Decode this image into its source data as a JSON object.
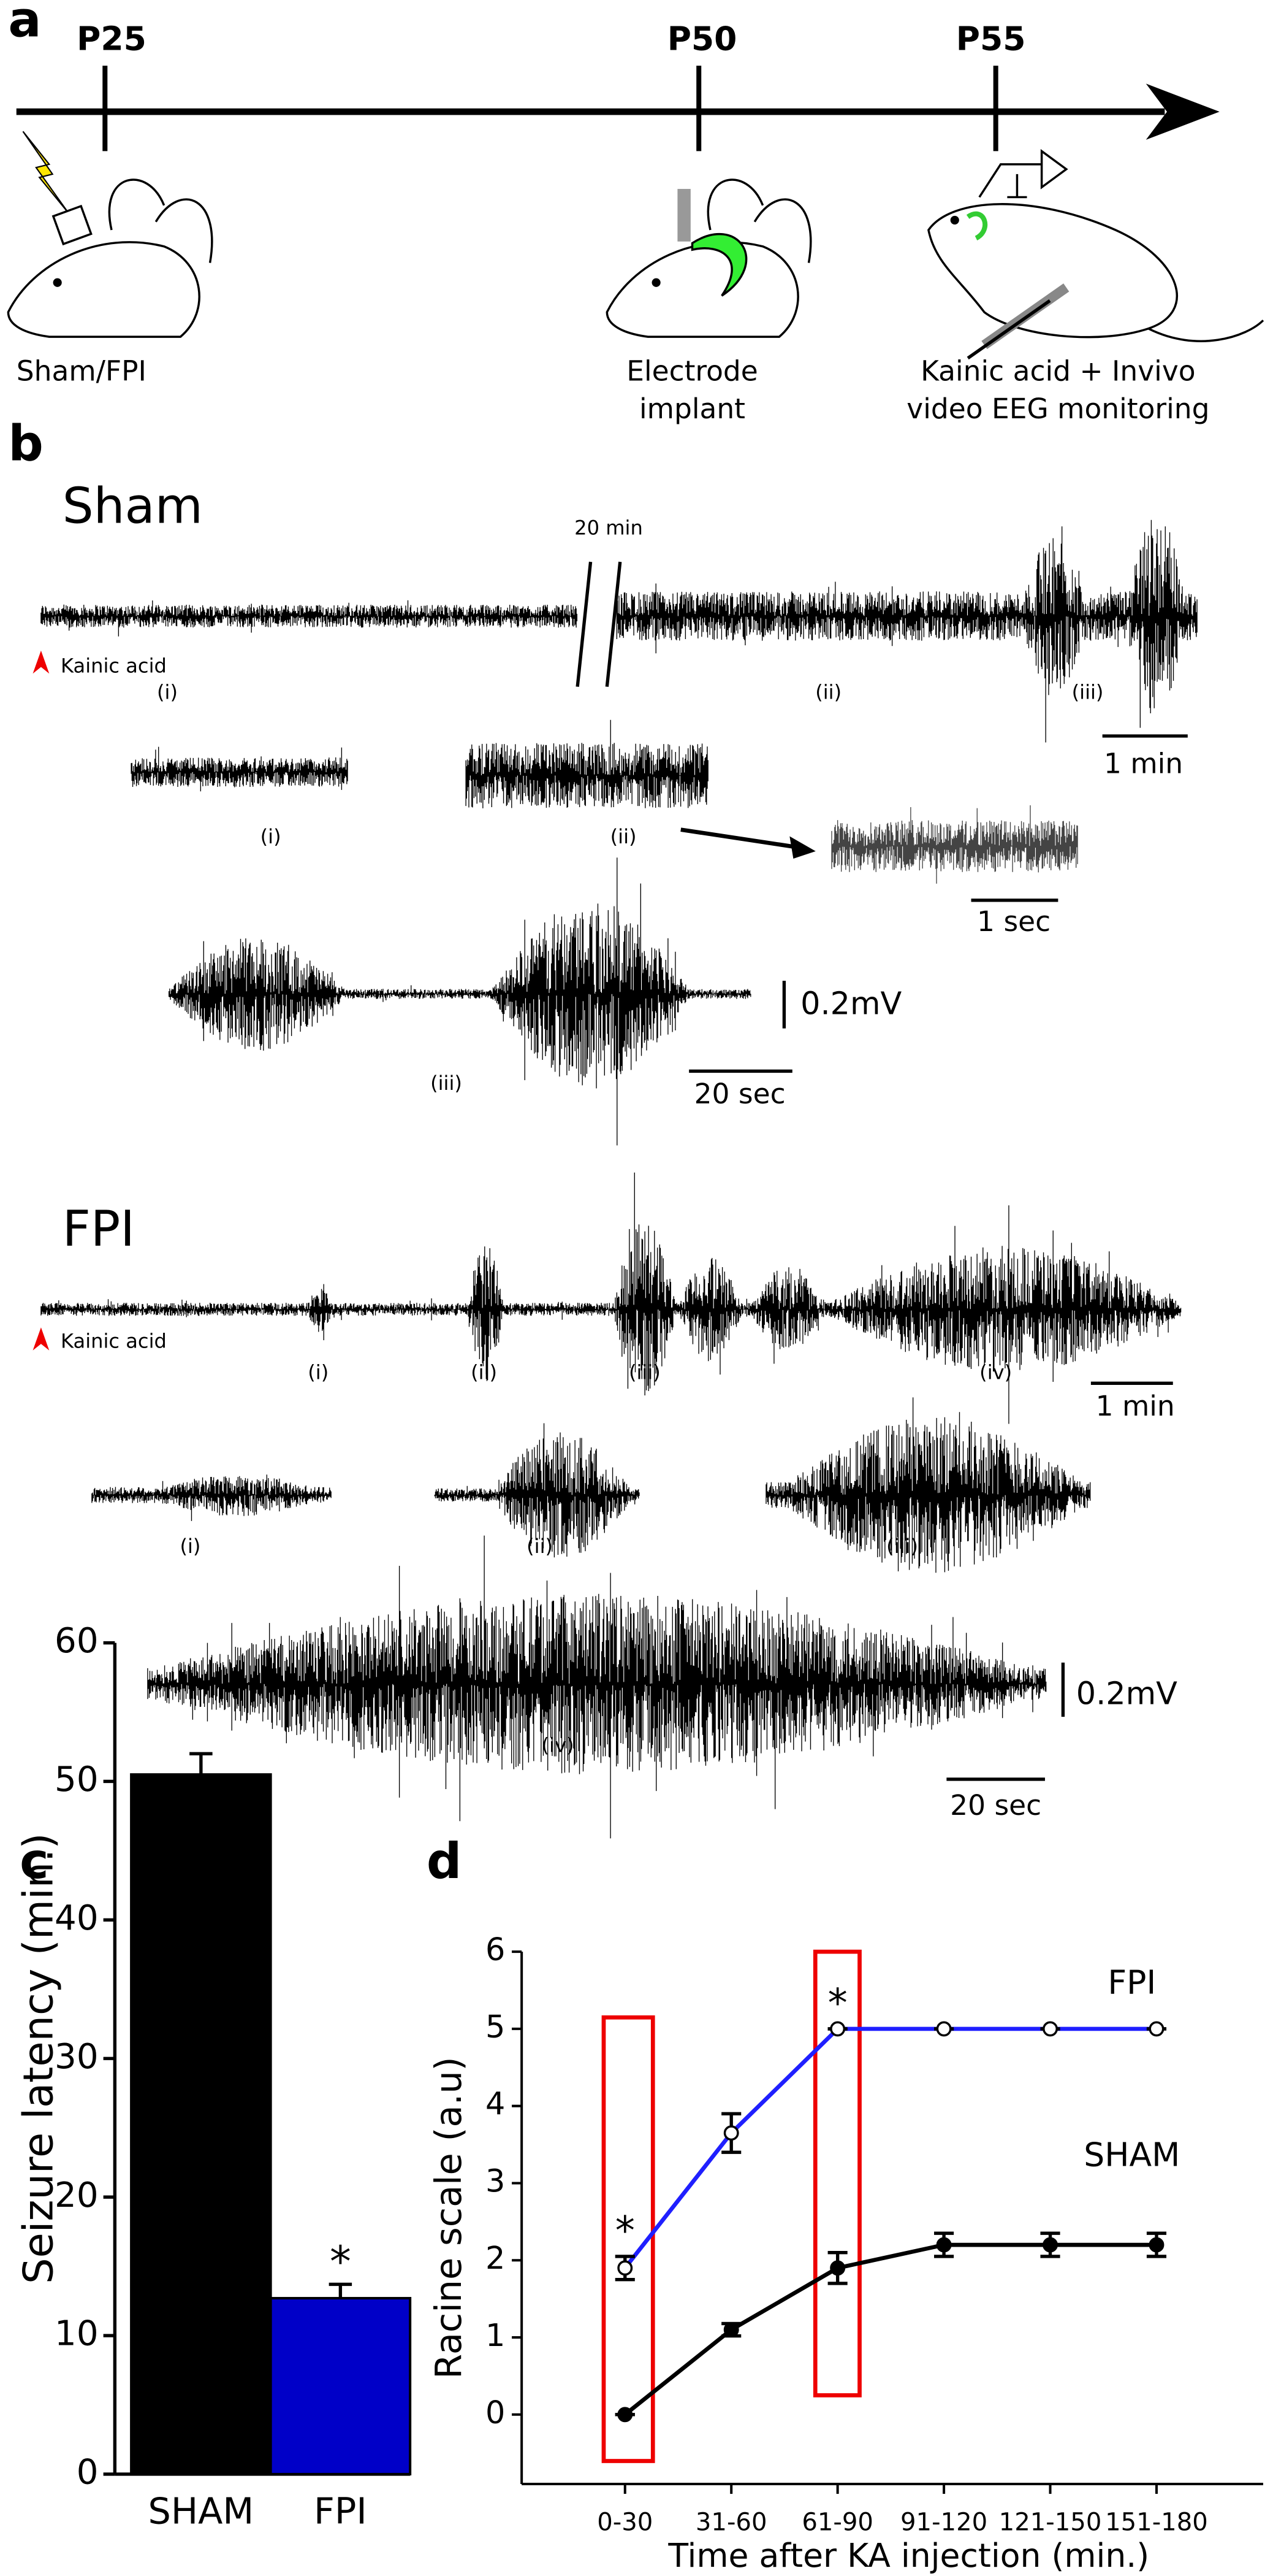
{
  "panel_labels": [
    "a",
    "b",
    "c",
    "d"
  ],
  "timeline": {
    "points": [
      "P25",
      "P50",
      "P55"
    ],
    "captions": [
      [
        "Sham/FPI"
      ],
      [
        "Electrode",
        "implant"
      ],
      [
        "Kainic acid + Invivo",
        "video EEG monitoring"
      ]
    ]
  },
  "traces": {
    "sham": {
      "title": "Sham",
      "break_label": "20 min",
      "marker": "Kainic acid",
      "labels": [
        "(i)",
        "(ii)",
        "(iii)"
      ],
      "scale": "1 min",
      "zoom_labels": [
        "(i)",
        "(ii)"
      ],
      "detail_scale": "1 sec",
      "expanded_label": "(iii)",
      "amplitude": "0.2mV",
      "expanded_scale": "20 sec"
    },
    "fpi": {
      "title": "FPI",
      "marker": "Kainic acid",
      "labels": [
        "(i)",
        "(ii)",
        "(iii)",
        "(iv)"
      ],
      "scale": "1 min",
      "zoom_labels": [
        "(i)",
        "(ii)",
        "(iii)"
      ],
      "expanded_label": "(iv)",
      "amplitude": "0.2mV",
      "expanded_scale": "20 sec"
    }
  },
  "chart_data": [
    {
      "type": "bar",
      "ylabel": "Seizure latency (min.)",
      "categories": [
        "SHAM",
        "FPI"
      ],
      "values": [
        50.5,
        12.7
      ],
      "errors": [
        1.5,
        1.0
      ],
      "colors": [
        "#000000",
        "#0000c8"
      ],
      "ylim": [
        0,
        60
      ],
      "yticks": [
        0,
        10,
        20,
        30,
        40,
        50,
        60
      ],
      "significance": "*"
    },
    {
      "type": "line",
      "xlabel": "Time after KA injection (min.)",
      "ylabel": "Racine scale (a.u)",
      "categories": [
        "0-30",
        "31-60",
        "61-90",
        "91-120",
        "121-150",
        "151-180"
      ],
      "series": [
        {
          "name": "FPI",
          "color": "#1f1fff",
          "values": [
            1.9,
            3.65,
            5,
            5,
            5,
            5
          ],
          "errors": [
            0.15,
            0.25,
            0,
            0,
            0,
            0
          ]
        },
        {
          "name": "SHAM",
          "color": "#000000",
          "values": [
            0,
            1.1,
            1.9,
            2.2,
            2.2,
            2.2
          ],
          "errors": [
            0,
            0.08,
            0.2,
            0.15,
            0.15,
            0.15
          ]
        }
      ],
      "ylim": [
        -0.9,
        6
      ],
      "yticks": [
        0,
        1,
        2,
        3,
        4,
        5,
        6
      ],
      "significance_marks": [
        "*",
        "*"
      ]
    }
  ]
}
